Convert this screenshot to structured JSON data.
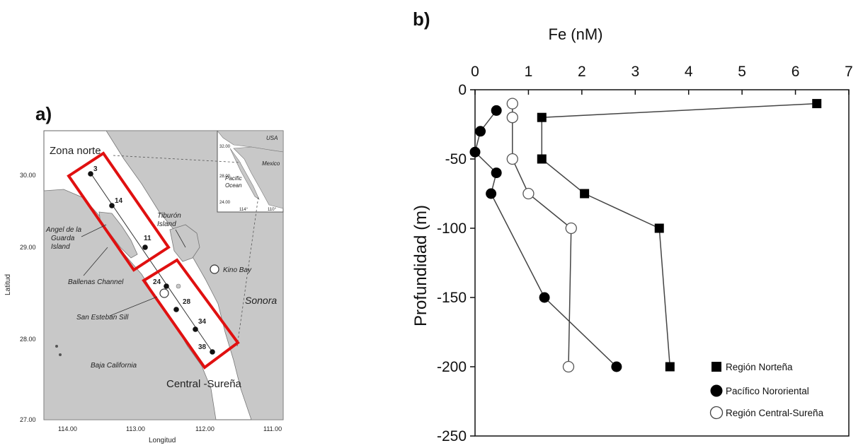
{
  "panel_a": {
    "label": "a)",
    "ylabel": "Latitud",
    "xlabel": "Longitud",
    "y_ticks": [
      "30.00",
      "29.00",
      "28.00",
      "27.00"
    ],
    "x_ticks": [
      "114.00",
      "113.00",
      "112.00",
      "111.00"
    ],
    "zone_labels": {
      "north": "Zona norte",
      "south": "Central -Sureña"
    },
    "places": {
      "angel": [
        "Angel de la",
        "Guarda",
        "Island"
      ],
      "tiburon": [
        "Tiburón",
        "Island"
      ],
      "kino": "Kino Bay",
      "ballenas": "Ballenas Channel",
      "esteban": "San Esteban Sill",
      "sonora": "Sonora",
      "baja": "Baja California"
    },
    "inset": {
      "usa": "USA",
      "mexico": "Mexico",
      "ocean": [
        "Pacific",
        "Ocean"
      ],
      "y_ticks": [
        "32.00",
        "28.00",
        "24.00"
      ],
      "x_ticks": [
        "114°",
        "110°"
      ]
    },
    "stations": [
      {
        "label": "3"
      },
      {
        "label": "14"
      },
      {
        "label": "11"
      },
      {
        "label": "24"
      },
      {
        "label": "28"
      },
      {
        "label": "34"
      },
      {
        "label": "38"
      }
    ],
    "colors": {
      "land": "#c8c8c8",
      "sea": "#ffffff",
      "box": "#e01010"
    }
  },
  "chart_data": {
    "type": "line",
    "panel_label": "b)",
    "title": "Fe (nM)",
    "xlabel": "Fe (nM)",
    "ylabel": "Profundidad (m)",
    "xlim": [
      0,
      7
    ],
    "ylim": [
      -250,
      0
    ],
    "x_ticks": [
      "0",
      "1",
      "2",
      "3",
      "4",
      "5",
      "6",
      "7"
    ],
    "y_ticks": [
      "0",
      "-50",
      "-100",
      "-150",
      "-200",
      "-250"
    ],
    "legend_position": "bottom-right",
    "series": [
      {
        "name": "Región Norteña",
        "marker": "square-filled",
        "points": [
          {
            "x": 6.4,
            "y": -10
          },
          {
            "x": 1.25,
            "y": -20
          },
          {
            "x": 1.25,
            "y": -50
          },
          {
            "x": 2.05,
            "y": -75
          },
          {
            "x": 3.45,
            "y": -100
          },
          {
            "x": 3.65,
            "y": -200
          }
        ]
      },
      {
        "name": "Pacífico Nororiental",
        "marker": "circle-filled",
        "points": [
          {
            "x": 0.4,
            "y": -15
          },
          {
            "x": 0.1,
            "y": -30
          },
          {
            "x": 0.0,
            "y": -45
          },
          {
            "x": 0.4,
            "y": -60
          },
          {
            "x": 0.3,
            "y": -75
          },
          {
            "x": 1.3,
            "y": -150
          },
          {
            "x": 2.65,
            "y": -200
          }
        ]
      },
      {
        "name": "Región Central-Sureña",
        "marker": "circle-open",
        "points": [
          {
            "x": 0.7,
            "y": -10
          },
          {
            "x": 0.7,
            "y": -20
          },
          {
            "x": 0.7,
            "y": -50
          },
          {
            "x": 1.0,
            "y": -75
          },
          {
            "x": 1.8,
            "y": -100
          },
          {
            "x": 1.75,
            "y": -200
          }
        ]
      }
    ]
  }
}
